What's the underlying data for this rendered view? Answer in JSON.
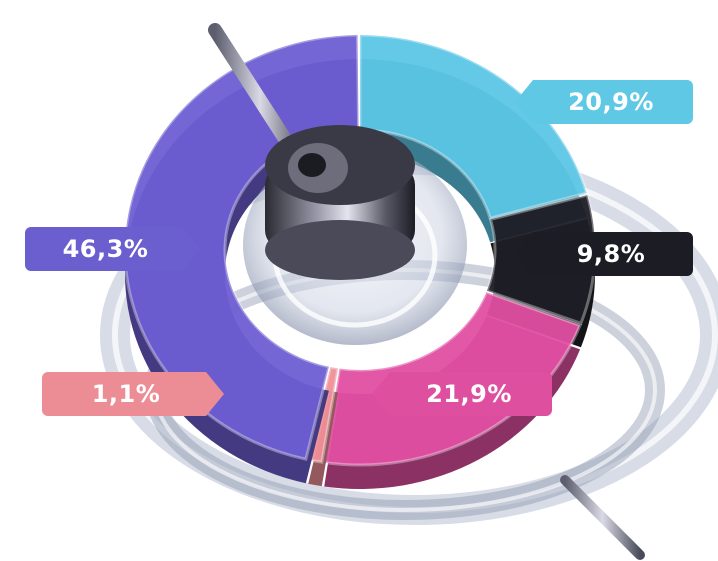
{
  "chart_data": {
    "type": "pie",
    "title": "",
    "slices": [
      {
        "value": 20.9,
        "label": "20,9%",
        "color": "#5cc6e6"
      },
      {
        "value": 9.8,
        "label": "9,8%",
        "color": "#1e1e26"
      },
      {
        "value": 21.9,
        "label": "21,9%",
        "color": "#e04fa2"
      },
      {
        "value": 1.1,
        "label": "1,1%",
        "color": "#ef8f97"
      },
      {
        "value": 46.3,
        "label": "46,3%",
        "color": "#6d5ed2"
      }
    ],
    "style": "3d-donut",
    "legend": "none"
  }
}
